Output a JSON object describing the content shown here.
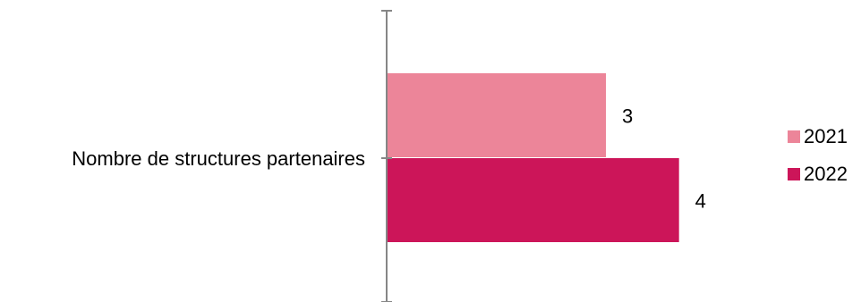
{
  "chart_data": {
    "type": "bar",
    "orientation": "horizontal",
    "categories": [
      "Nombre de structures partenaires"
    ],
    "series": [
      {
        "name": "2021",
        "values": [
          3
        ],
        "color": "#ec8599"
      },
      {
        "name": "2022",
        "values": [
          4
        ],
        "color": "#cc1559"
      }
    ],
    "xlim": [
      0,
      4.5
    ],
    "data_labels": true,
    "grid": false,
    "legend_position": "right"
  }
}
